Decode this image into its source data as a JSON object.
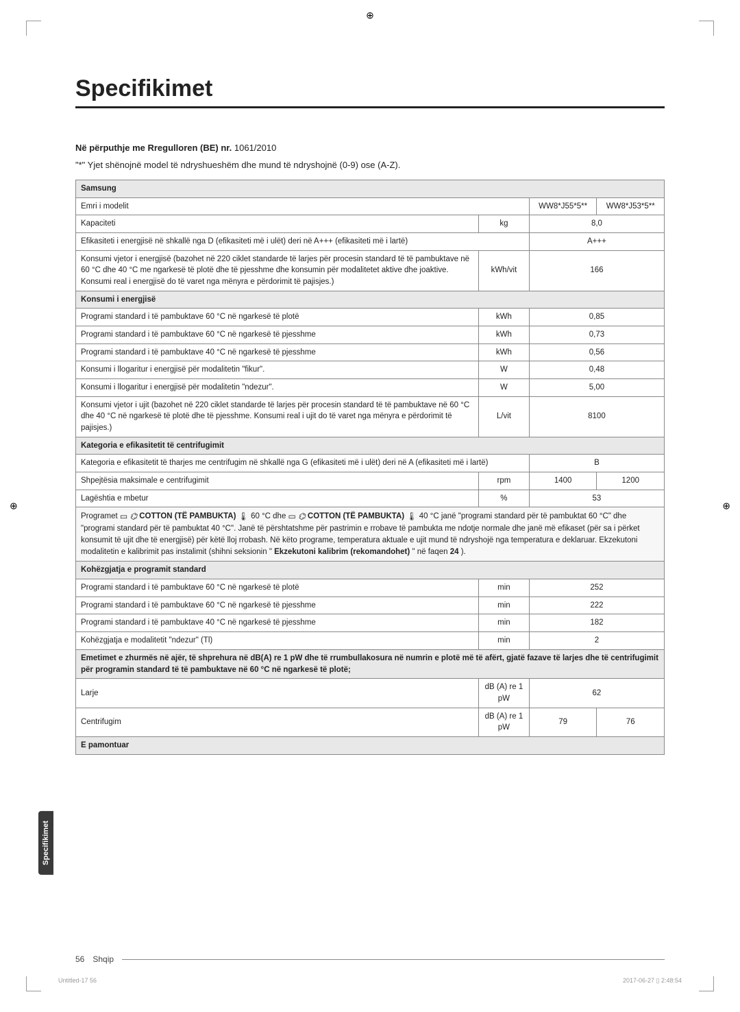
{
  "title": "Specifikimet",
  "regulation": {
    "label": "Në përputhje me Rregulloren (BE) nr.",
    "number": "1061/2010"
  },
  "asterisk_note": "\"*\" Yjet shënojnë model të ndryshueshëm dhe mund të ndryshojnë (0-9) ose (A-Z).",
  "brand": "Samsung",
  "rows": {
    "model_name": {
      "label": "Emri i modelit",
      "v1": "WW8*J55*5**",
      "v2": "WW8*J53*5**"
    },
    "capacity": {
      "label": "Kapaciteti",
      "unit": "kg",
      "value": "8,0"
    },
    "energy_class": {
      "label": "Efikasiteti i energjisë në shkallë nga D (efikasiteti më i ulët) deri në A+++ (efikasiteti më i lartë)",
      "value": "A+++"
    },
    "annual_energy": {
      "label": "Konsumi vjetor i energjisë (bazohet në 220 ciklet standarde të larjes për procesin standard të të pambuktave në 60 °C dhe 40 °C me ngarkesë të plotë dhe të pjesshme dhe konsumin për modalitetet aktive dhe joaktive. Konsumi real i energjisë do të varet nga mënyra e përdorimit të pajisjes.)",
      "unit": "kWh/vit",
      "value": "166"
    },
    "energy_header": "Konsumi i energjisë",
    "e60_full": {
      "label": "Programi standard i të pambuktave 60 °C në ngarkesë të plotë",
      "unit": "kWh",
      "value": "0,85"
    },
    "e60_part": {
      "label": "Programi standard i të pambuktave 60 °C në ngarkesë të pjesshme",
      "unit": "kWh",
      "value": "0,73"
    },
    "e40_part": {
      "label": "Programi standard i të pambuktave 40 °C në ngarkesë të pjesshme",
      "unit": "kWh",
      "value": "0,56"
    },
    "off_mode": {
      "label": "Konsumi i llogaritur i energjisë për modalitetin \"fikur\".",
      "unit": "W",
      "value": "0,48"
    },
    "on_mode": {
      "label": "Konsumi i llogaritur i energjisë për modalitetin \"ndezur\".",
      "unit": "W",
      "value": "5,00"
    },
    "water": {
      "label": "Konsumi vjetor i ujit (bazohet në 220 ciklet standarde të larjes për procesin standard të të pambuktave në 60 °C dhe 40 °C në ngarkesë të plotë dhe të pjesshme. Konsumi real i ujit do të varet nga mënyra e përdorimit të pajisjes.)",
      "unit": "L/vit",
      "value": "8100"
    },
    "spin_header": "Kategoria e efikasitetit të centrifugimit",
    "spin_class": {
      "label": "Kategoria e efikasitetit të tharjes me centrifugim në shkallë nga G (efikasiteti më i ulët) deri në A (efikasiteti më i lartë)",
      "value": "B"
    },
    "spin_speed": {
      "label": "Shpejtësia maksimale e centrifugimit",
      "unit": "rpm",
      "v1": "1400",
      "v2": "1200"
    },
    "moisture": {
      "label": "Lagështia e mbetur",
      "unit": "%",
      "value": "53"
    },
    "programs_note": {
      "pre1": "Programet ",
      "cotton1": "COTTON (TË PAMBUKTA)",
      "mid1": " 60 °C dhe ",
      "cotton2": "COTTON (TË PAMBUKTA)",
      "mid2": " 40 °C janë \"programi standard për të pambuktat 60 °C\" dhe \"programi standard për të pambuktat 40 °C\". Janë të përshtatshme për pastrimin e rrobave të pambukta me ndotje normale dhe janë më efikaset (për sa i përket konsumit të ujit dhe të energjisë) për këtë lloj rrobash. Në këto programe, temperatura aktuale e ujit mund të ndryshojë nga temperatura e deklaruar. Ekzekutoni modalitetin e kalibrimit pas instalimit (shihni seksionin \"",
      "bold": "Ekzekutoni kalibrim (rekomandohet)",
      "post": "\" në faqen ",
      "page": "24",
      "end": ")."
    },
    "duration_header": "Kohëzgjatja e programit standard",
    "d60_full": {
      "label": "Programi standard i të pambuktave 60 °C në ngarkesë të plotë",
      "unit": "min",
      "value": "252"
    },
    "d60_part": {
      "label": "Programi standard i të pambuktave 60 °C në ngarkesë të pjesshme",
      "unit": "min",
      "value": "222"
    },
    "d40_part": {
      "label": "Programi standard i të pambuktave 40 °C në ngarkesë të pjesshme",
      "unit": "min",
      "value": "182"
    },
    "left_on": {
      "label": "Kohëzgjatja e modalitetit \"ndezur\" (Tl)",
      "unit": "min",
      "value": "2"
    },
    "noise_header": "Emetimet e zhurmës në ajër, të shprehura në dB(A) re 1 pW dhe të rrumbullakosura në numrin e plotë më të afërt, gjatë fazave të larjes dhe të centrifugimit për programin standard të të pambuktave në 60 °C në ngarkesë të plotë;",
    "wash": {
      "label": "Larje",
      "unit": "dB (A) re 1 pW",
      "value": "62"
    },
    "spin": {
      "label": "Centrifugim",
      "unit": "dB (A) re 1 pW",
      "v1": "79",
      "v2": "76"
    },
    "mounted": "E pamontuar"
  },
  "side_tab": "Specifikimet",
  "footer": {
    "page": "56",
    "lang": "Shqip",
    "doc": "Untitled-17   56",
    "time": "2017-06-27   ▯ 2:48:54"
  }
}
